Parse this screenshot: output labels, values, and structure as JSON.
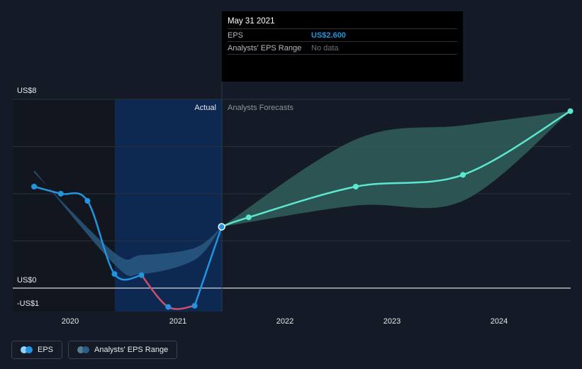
{
  "tooltip": {
    "date": "May 31 2021",
    "eps_label": "EPS",
    "eps_value": "US$2.600",
    "range_label": "Analysts' EPS Range",
    "range_value": "No data"
  },
  "region_labels": {
    "actual": "Actual",
    "forecast": "Analysts Forecasts"
  },
  "legend": {
    "eps": "EPS",
    "range": "Analysts' EPS Range"
  },
  "colors": {
    "eps_line": "#2394df",
    "negative_line": "#d0506a",
    "forecast_line": "#5ce8d0",
    "range_band_actual": "#2a5d86",
    "range_band_forecast": "#2f5e5a",
    "highlight": "#0c2c59"
  },
  "chart_data": {
    "type": "line",
    "y_tick_labels": [
      "US$8",
      "US$0",
      "-US$1"
    ],
    "x_tick_labels": [
      "2020",
      "2021",
      "2022",
      "2023",
      "2024"
    ],
    "ylim": [
      -1,
      8
    ],
    "series": [
      {
        "name": "EPS",
        "points": [
          [
            "2019-08-31",
            4.3
          ],
          [
            "2019-11-30",
            4.0
          ],
          [
            "2020-02-29",
            3.7
          ],
          [
            "2020-05-31",
            0.6
          ],
          [
            "2020-08-31",
            0.55
          ],
          [
            "2020-11-30",
            -0.8
          ],
          [
            "2021-02-28",
            -0.75
          ],
          [
            "2021-05-31",
            2.6
          ]
        ]
      },
      {
        "name": "Analysts Forecasts",
        "points": [
          [
            "2021-05-31",
            2.6
          ],
          [
            "2021-08-31",
            3.0
          ],
          [
            "2022-08-31",
            4.3
          ],
          [
            "2023-08-31",
            4.8
          ],
          [
            "2024-08-31",
            7.5
          ]
        ]
      },
      {
        "name": "Analysts' EPS Range",
        "points_low": [
          [
            "2019-08-31",
            5.0
          ],
          [
            "2020-05-31",
            1.0
          ],
          [
            "2020-08-31",
            0.6
          ],
          [
            "2021-02-28",
            1.2
          ],
          [
            "2021-05-31",
            2.6
          ],
          [
            "2022-08-31",
            3.5
          ],
          [
            "2023-08-31",
            3.7
          ],
          [
            "2024-08-31",
            7.5
          ]
        ],
        "points_high": [
          [
            "2019-08-31",
            4.9
          ],
          [
            "2020-05-31",
            1.5
          ],
          [
            "2020-08-31",
            1.4
          ],
          [
            "2021-02-28",
            1.7
          ],
          [
            "2021-05-31",
            2.6
          ],
          [
            "2022-08-31",
            6.3
          ],
          [
            "2023-08-31",
            6.9
          ],
          [
            "2024-08-31",
            7.5
          ]
        ]
      }
    ]
  }
}
